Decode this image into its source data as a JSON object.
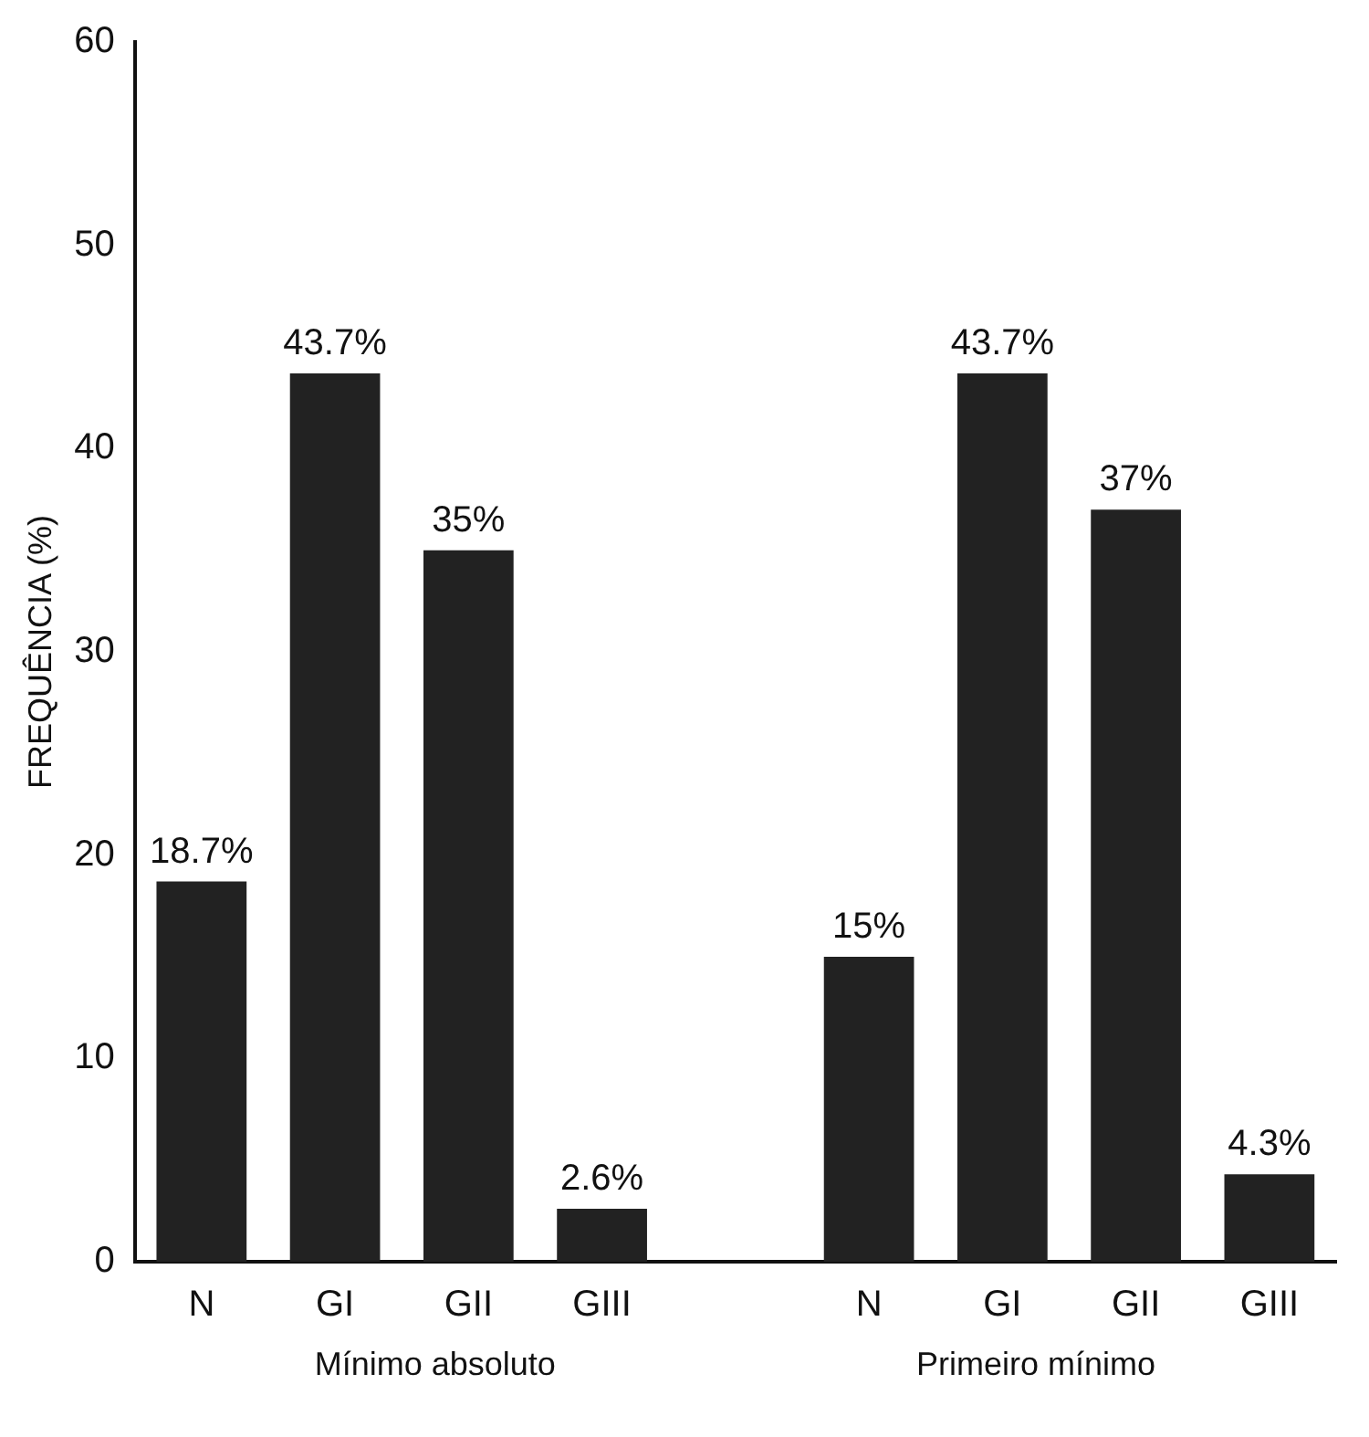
{
  "chart_data": {
    "type": "bar",
    "ylabel": "FREQUÊNCIA (%)",
    "categories": [
      "N",
      "GI",
      "GII",
      "GIII",
      null,
      "N",
      "GI",
      "GII",
      "GIII"
    ],
    "values": [
      18.7,
      43.7,
      35,
      2.6,
      null,
      15,
      43.7,
      37,
      4.3
    ],
    "value_labels": [
      "18.7%",
      "43.7%",
      "35%",
      "2.6%",
      null,
      "15%",
      "43.7%",
      "37%",
      "4.3%"
    ],
    "color": "#222222",
    "ylim": [
      0,
      60
    ],
    "yticks": [
      0,
      10,
      20,
      30,
      40,
      50,
      60
    ],
    "grid": false,
    "legend": false,
    "annotations": [
      "Mínimo absoluto",
      "Primeiro mínimo"
    ]
  }
}
